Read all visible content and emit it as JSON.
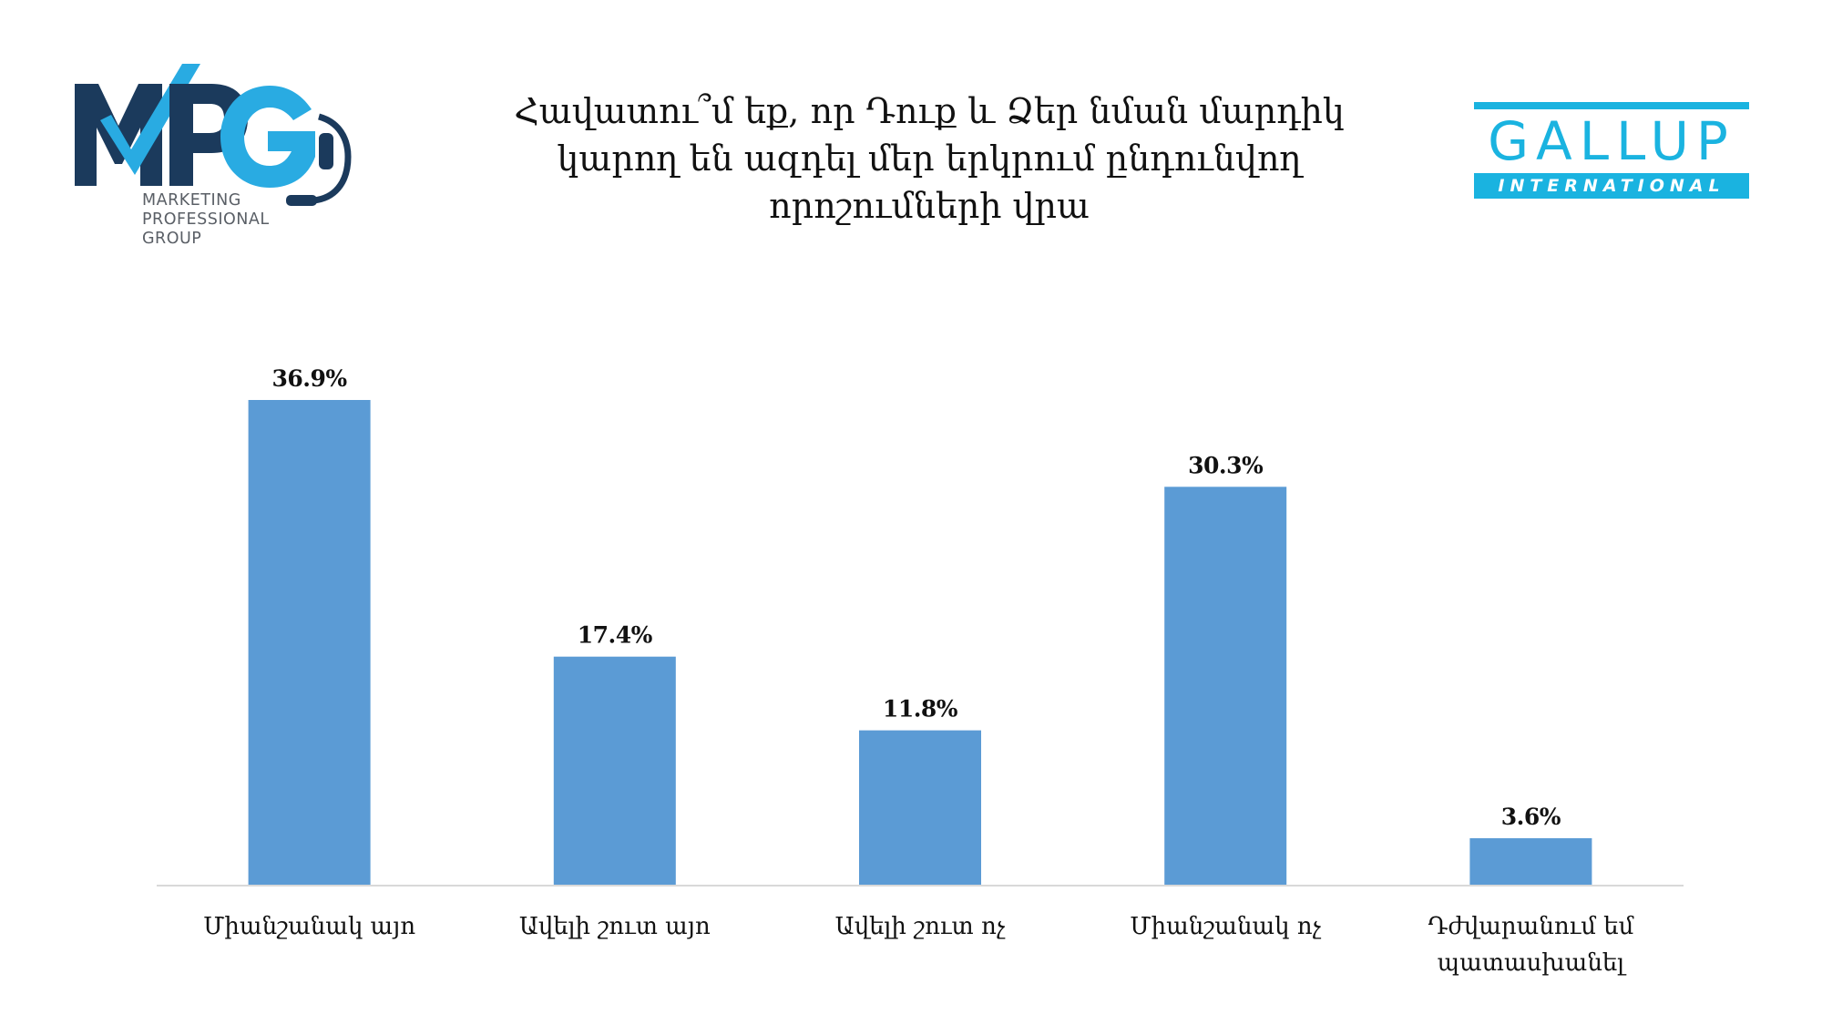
{
  "logos": {
    "mpg": {
      "mark": "MPG",
      "subtitle_lines": [
        "MARKETING",
        "PROFESSIONAL",
        "GROUP"
      ],
      "colors": {
        "navy": "#1b3a5c",
        "cyan": "#29abe2"
      }
    },
    "gallup": {
      "word": "GALLUP",
      "sub": "INTERNATIONAL",
      "color": "#1ab3e0"
    }
  },
  "chart_data": {
    "type": "bar",
    "title_lines": [
      "Հավատու՞մ եք, որ Դուք և Ձեր նման մարդիկ",
      "կարող են ազդել մեր երկրում ընդունվող",
      "որոշումների վրա"
    ],
    "categories": [
      [
        "Միանշանակ այո"
      ],
      [
        "Ավելի շուտ այո"
      ],
      [
        "Ավելի շուտ ոչ"
      ],
      [
        "Միանշանակ ոչ"
      ],
      [
        "Դժվարանում եմ",
        "պատասխանել"
      ]
    ],
    "values": [
      36.9,
      17.4,
      11.8,
      30.3,
      3.6
    ],
    "value_labels": [
      "36.9%",
      "17.4%",
      "11.8%",
      "30.3%",
      "3.6%"
    ],
    "unit": "%",
    "ylim": [
      0,
      40
    ],
    "grid": false,
    "legend": "none",
    "colors": {
      "bar": "#5b9bd5",
      "axis": "#d9d9d9"
    }
  }
}
